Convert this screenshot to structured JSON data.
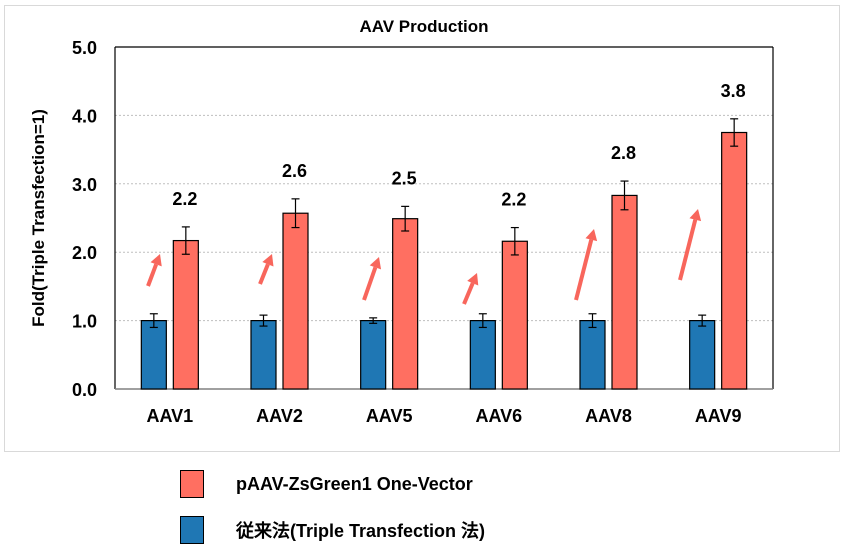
{
  "chart_data": {
    "type": "bar",
    "title": "AAV Production",
    "ylabel": "Fold(Triple Transfection=1)",
    "xlabel": "",
    "ylim": [
      0,
      5
    ],
    "yticks": [
      "0.0",
      "1.0",
      "2.0",
      "3.0",
      "4.0",
      "5.0"
    ],
    "grid": true,
    "legend_position": "bottom",
    "categories": [
      "AAV1",
      "AAV2",
      "AAV5",
      "AAV6",
      "AAV8",
      "AAV9"
    ],
    "series": [
      {
        "name": "従来法(Triple Transfection 法)",
        "color": "#1f77b4",
        "values": [
          1.0,
          1.0,
          1.0,
          1.0,
          1.0,
          1.0
        ],
        "errors": [
          0.1,
          0.08,
          0.04,
          0.1,
          0.1,
          0.08
        ]
      },
      {
        "name": "pAAV-ZsGreen1 One-Vector",
        "color": "#ff6f61",
        "values": [
          2.17,
          2.57,
          2.49,
          2.16,
          2.83,
          3.75
        ],
        "errors": [
          0.2,
          0.21,
          0.18,
          0.2,
          0.21,
          0.2
        ]
      }
    ],
    "data_labels": [
      "2.2",
      "2.6",
      "2.5",
      "2.2",
      "2.8",
      "3.8"
    ],
    "arrow_color": "#f8665c"
  },
  "legend": {
    "items": [
      {
        "label": "pAAV-ZsGreen1 One-Vector",
        "color": "#ff6f61"
      },
      {
        "label": "従来法(Triple Transfection 法)",
        "color": "#1f77b4"
      }
    ]
  }
}
